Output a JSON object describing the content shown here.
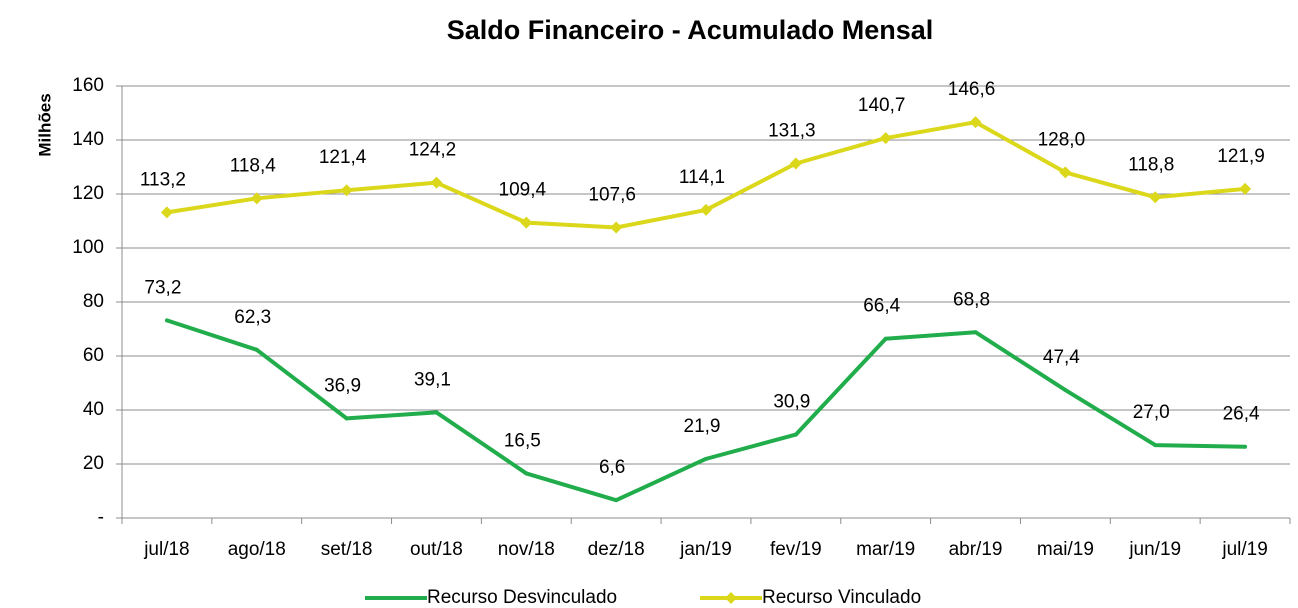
{
  "chart_data": {
    "type": "line",
    "title": "Saldo Financeiro - Acumulado Mensal",
    "y_label": "Milhões",
    "categories": [
      "jul/18",
      "ago/18",
      "set/18",
      "out/18",
      "nov/18",
      "dez/18",
      "jan/19",
      "fev/19",
      "mar/19",
      "abr/19",
      "mai/19",
      "jun/19",
      "jul/19"
    ],
    "series": [
      {
        "name": "Recurso Desvinculado",
        "color": "#21ad4b",
        "marker": "none",
        "values": [
          73.2,
          62.3,
          36.9,
          39.1,
          16.5,
          6.6,
          21.9,
          30.9,
          66.4,
          68.8,
          47.4,
          27.0,
          26.4
        ],
        "value_labels": [
          "73,2",
          "62,3",
          "36,9",
          "39,1",
          "16,5",
          "6,6",
          "21,9",
          "30,9",
          "66,4",
          "68,8",
          "47,4",
          "27,0",
          "26,4"
        ]
      },
      {
        "name": "Recurso Vinculado",
        "color": "#dbd71b",
        "marker": "diamond",
        "values": [
          113.2,
          118.4,
          121.4,
          124.2,
          109.4,
          107.6,
          114.1,
          131.3,
          140.7,
          146.6,
          128.0,
          118.8,
          121.9
        ],
        "value_labels": [
          "113,2",
          "118,4",
          "121,4",
          "124,2",
          "109,4",
          "107,6",
          "114,1",
          "131,3",
          "140,7",
          "146,6",
          "128,0",
          "118,8",
          "121,9"
        ]
      }
    ],
    "ylim": [
      0,
      160
    ],
    "yticks": [
      {
        "value": 0,
        "label": "-"
      },
      20,
      40,
      60,
      80,
      100,
      120,
      140,
      160
    ],
    "grid": true,
    "legend": "bottom"
  }
}
